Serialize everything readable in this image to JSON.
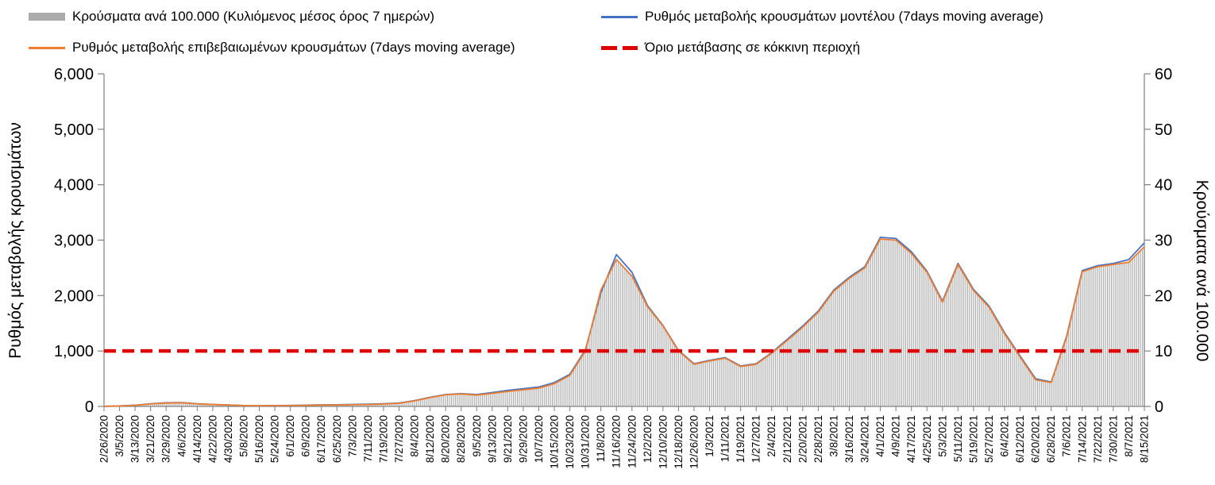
{
  "chart_data": {
    "type": "bar+line",
    "title": "",
    "legend_position": "top",
    "grid": false,
    "x_tick_interval_days": 8,
    "categories": [
      "2/26/2020",
      "3/5/2020",
      "3/13/2020",
      "3/21/2020",
      "3/29/2020",
      "4/6/2020",
      "4/14/2020",
      "4/22/2020",
      "4/30/2020",
      "5/8/2020",
      "5/16/2020",
      "5/24/2020",
      "6/1/2020",
      "6/9/2020",
      "6/17/2020",
      "6/25/2020",
      "7/3/2020",
      "7/11/2020",
      "7/19/2020",
      "7/27/2020",
      "8/4/2020",
      "8/12/2020",
      "8/20/2020",
      "8/28/2020",
      "9/5/2020",
      "9/13/2020",
      "9/21/2020",
      "9/29/2020",
      "10/7/2020",
      "10/15/2020",
      "10/23/2020",
      "10/31/2020",
      "11/8/2020",
      "11/16/2020",
      "11/24/2020",
      "12/2/2020",
      "12/10/2020",
      "12/18/2020",
      "12/26/2020",
      "1/3/2021",
      "1/11/2021",
      "1/19/2021",
      "1/27/2021",
      "2/4/2021",
      "2/12/2021",
      "2/20/2021",
      "2/28/2021",
      "3/8/2021",
      "3/16/2021",
      "3/24/2021",
      "4/1/2021",
      "4/9/2021",
      "4/17/2021",
      "4/25/2021",
      "5/3/2021",
      "5/11/2021",
      "5/19/2021",
      "5/27/2021",
      "6/4/2021",
      "6/12/2021",
      "6/20/2021",
      "6/28/2021",
      "7/6/2021",
      "7/14/2021",
      "7/22/2021",
      "7/30/2021",
      "8/7/2021",
      "8/15/2021"
    ],
    "series": [
      {
        "name": "Κρούσματα ανά 100.000 (Κυλιόμενος μέσος όρος 7 ημερών)",
        "type": "bar",
        "axis": "right",
        "color": "#ABABAB",
        "values": [
          0.02,
          0.08,
          0.2,
          0.45,
          0.6,
          0.65,
          0.45,
          0.35,
          0.25,
          0.15,
          0.12,
          0.14,
          0.16,
          0.2,
          0.24,
          0.26,
          0.3,
          0.34,
          0.42,
          0.55,
          1.0,
          1.6,
          2.1,
          2.25,
          2.05,
          2.35,
          2.7,
          3.0,
          3.3,
          4.1,
          5.6,
          10.0,
          21.0,
          26.5,
          23.5,
          18.0,
          14.5,
          10.0,
          7.6,
          8.2,
          8.7,
          7.2,
          7.6,
          9.6,
          11.9,
          14.3,
          17.0,
          20.8,
          23.1,
          25.0,
          30.2,
          30.0,
          27.6,
          24.2,
          18.8,
          25.6,
          20.9,
          17.9,
          13.1,
          8.9,
          4.8,
          4.3,
          12.5,
          24.3,
          25.2,
          25.6,
          26.0,
          28.8
        ]
      },
      {
        "name": "Ρυθμός μεταβολής κρουσμάτων μοντέλου (7days moving average)",
        "type": "line",
        "axis": "left",
        "color": "#4472C4",
        "values": [
          2,
          8,
          22,
          48,
          65,
          70,
          48,
          36,
          26,
          16,
          13,
          15,
          17,
          22,
          28,
          30,
          35,
          40,
          48,
          60,
          105,
          165,
          215,
          230,
          215,
          250,
          290,
          320,
          350,
          430,
          580,
          1020,
          2050,
          2740,
          2420,
          1820,
          1460,
          1010,
          770,
          830,
          880,
          730,
          770,
          970,
          1210,
          1450,
          1720,
          2100,
          2330,
          2520,
          3050,
          3030,
          2790,
          2440,
          1900,
          2580,
          2110,
          1810,
          1330,
          910,
          500,
          440,
          1270,
          2450,
          2540,
          2580,
          2650,
          2950
        ]
      },
      {
        "name": "Ρυθμός μεταβολής επιβεβαιωμένων κρουσμάτων (7days moving average)",
        "type": "line",
        "axis": "left",
        "color": "#ED7D31",
        "values": [
          2,
          8,
          20,
          45,
          60,
          65,
          45,
          35,
          25,
          15,
          12,
          14,
          16,
          20,
          24,
          26,
          30,
          34,
          42,
          55,
          100,
          160,
          210,
          225,
          205,
          235,
          270,
          300,
          330,
          410,
          560,
          1000,
          2100,
          2650,
          2350,
          1800,
          1450,
          1000,
          760,
          820,
          870,
          720,
          760,
          960,
          1190,
          1430,
          1700,
          2080,
          2310,
          2500,
          3020,
          3000,
          2760,
          2420,
          1880,
          2560,
          2090,
          1790,
          1310,
          890,
          480,
          430,
          1250,
          2430,
          2520,
          2560,
          2600,
          2880
        ]
      }
    ],
    "threshold": {
      "label": "Όριο μετάβασης σε κόκκινη περιοχή",
      "value": 1000,
      "color": "#E00000",
      "style": "dashed"
    },
    "left_axis": {
      "title": "Ρυθμός μεταβολής κρουσμάτων",
      "min": 0,
      "max": 6000,
      "ticks": [
        "0",
        "1,000",
        "2,000",
        "3,000",
        "4,000",
        "5,000",
        "6,000"
      ]
    },
    "right_axis": {
      "title": "Κρούσματα ανά 100.000",
      "min": 0,
      "max": 60,
      "ticks": [
        "0",
        "10",
        "20",
        "30",
        "40",
        "50",
        "60"
      ]
    }
  }
}
